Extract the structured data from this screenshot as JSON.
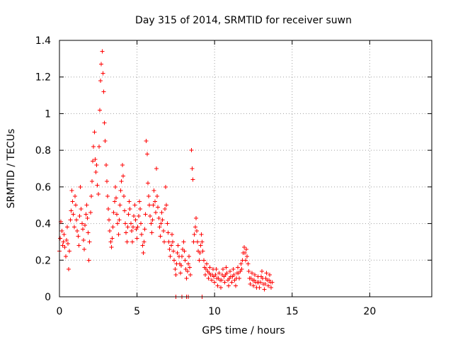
{
  "chart_data": {
    "type": "scatter",
    "title": "Day 315 of 2014, SRMTID for receiver suwn",
    "xlabel": "GPS time / hours",
    "ylabel": "SRMTID / TECUs",
    "xlim": [
      0,
      24
    ],
    "ylim": [
      0,
      1.4
    ],
    "x_ticks": [
      0,
      5,
      10,
      15,
      20
    ],
    "x_tick_labels": [
      "0",
      "5",
      "10",
      "15",
      "20"
    ],
    "y_ticks": [
      0,
      0.2,
      0.4,
      0.6,
      0.8,
      1.0,
      1.2,
      1.4
    ],
    "y_tick_labels": [
      "0",
      "0.2",
      "0.4",
      "0.6",
      "0.8",
      "1",
      "1.2",
      "1.4"
    ],
    "grid": true,
    "marker": "+",
    "color": "#ff0000",
    "series": [
      {
        "name": "SRMTID",
        "points": [
          [
            0.0,
            0.25
          ],
          [
            0.05,
            0.32
          ],
          [
            0.1,
            0.41
          ],
          [
            0.15,
            0.36
          ],
          [
            0.2,
            0.28
          ],
          [
            0.25,
            0.3
          ],
          [
            0.3,
            0.34
          ],
          [
            0.35,
            0.27
          ],
          [
            0.4,
            0.22
          ],
          [
            0.45,
            0.31
          ],
          [
            0.5,
            0.38
          ],
          [
            0.55,
            0.29
          ],
          [
            0.6,
            0.15
          ],
          [
            0.65,
            0.25
          ],
          [
            0.7,
            0.42
          ],
          [
            0.75,
            0.47
          ],
          [
            0.8,
            0.58
          ],
          [
            0.85,
            0.52
          ],
          [
            0.9,
            0.45
          ],
          [
            0.95,
            0.38
          ],
          [
            1.0,
            0.55
          ],
          [
            1.05,
            0.5
          ],
          [
            1.1,
            0.42
          ],
          [
            1.15,
            0.36
          ],
          [
            1.2,
            0.33
          ],
          [
            1.25,
            0.28
          ],
          [
            1.3,
            0.44
          ],
          [
            1.35,
            0.6
          ],
          [
            1.4,
            0.48
          ],
          [
            1.45,
            0.4
          ],
          [
            1.5,
            0.37
          ],
          [
            1.55,
            0.31
          ],
          [
            1.6,
            0.26
          ],
          [
            1.65,
            0.39
          ],
          [
            1.7,
            0.45
          ],
          [
            1.75,
            0.5
          ],
          [
            1.8,
            0.43
          ],
          [
            1.85,
            0.35
          ],
          [
            1.9,
            0.2
          ],
          [
            1.95,
            0.3
          ],
          [
            2.0,
            0.46
          ],
          [
            2.05,
            0.55
          ],
          [
            2.1,
            0.63
          ],
          [
            2.15,
            0.74
          ],
          [
            2.2,
            0.82
          ],
          [
            2.25,
            0.9
          ],
          [
            2.3,
            0.75
          ],
          [
            2.35,
            0.68
          ],
          [
            2.4,
            0.72
          ],
          [
            2.45,
            0.61
          ],
          [
            2.5,
            0.56
          ],
          [
            2.55,
            0.82
          ],
          [
            2.6,
            1.02
          ],
          [
            2.65,
            1.18
          ],
          [
            2.7,
            1.27
          ],
          [
            2.75,
            1.34
          ],
          [
            2.8,
            1.22
          ],
          [
            2.85,
            1.12
          ],
          [
            2.9,
            0.95
          ],
          [
            2.95,
            0.85
          ],
          [
            3.0,
            0.72
          ],
          [
            3.05,
            0.63
          ],
          [
            3.1,
            0.55
          ],
          [
            3.15,
            0.48
          ],
          [
            3.2,
            0.42
          ],
          [
            3.25,
            0.36
          ],
          [
            3.3,
            0.3
          ],
          [
            3.35,
            0.27
          ],
          [
            3.4,
            0.32
          ],
          [
            3.45,
            0.38
          ],
          [
            3.5,
            0.46
          ],
          [
            3.55,
            0.52
          ],
          [
            3.6,
            0.6
          ],
          [
            3.65,
            0.54
          ],
          [
            3.7,
            0.45
          ],
          [
            3.75,
            0.4
          ],
          [
            3.8,
            0.34
          ],
          [
            3.85,
            0.42
          ],
          [
            3.9,
            0.5
          ],
          [
            3.95,
            0.58
          ],
          [
            4.0,
            0.63
          ],
          [
            4.05,
            0.72
          ],
          [
            4.1,
            0.66
          ],
          [
            4.15,
            0.55
          ],
          [
            4.2,
            0.47
          ],
          [
            4.25,
            0.4
          ],
          [
            4.3,
            0.35
          ],
          [
            4.35,
            0.3
          ],
          [
            4.4,
            0.38
          ],
          [
            4.45,
            0.45
          ],
          [
            4.5,
            0.52
          ],
          [
            4.55,
            0.48
          ],
          [
            4.6,
            0.4
          ],
          [
            4.65,
            0.36
          ],
          [
            4.7,
            0.3
          ],
          [
            4.75,
            0.38
          ],
          [
            4.8,
            0.44
          ],
          [
            4.85,
            0.5
          ],
          [
            4.9,
            0.42
          ],
          [
            4.95,
            0.37
          ],
          [
            5.0,
            0.32
          ],
          [
            5.05,
            0.38
          ],
          [
            5.1,
            0.44
          ],
          [
            5.15,
            0.52
          ],
          [
            5.2,
            0.48
          ],
          [
            5.25,
            0.4
          ],
          [
            5.3,
            0.34
          ],
          [
            5.35,
            0.28
          ],
          [
            5.4,
            0.24
          ],
          [
            5.45,
            0.3
          ],
          [
            5.5,
            0.37
          ],
          [
            5.55,
            0.45
          ],
          [
            5.6,
            0.85
          ],
          [
            5.65,
            0.78
          ],
          [
            5.7,
            0.62
          ],
          [
            5.75,
            0.55
          ],
          [
            5.8,
            0.5
          ],
          [
            5.85,
            0.44
          ],
          [
            5.9,
            0.4
          ],
          [
            5.95,
            0.35
          ],
          [
            6.0,
            0.42
          ],
          [
            6.05,
            0.5
          ],
          [
            6.1,
            0.58
          ],
          [
            6.15,
            0.52
          ],
          [
            6.2,
            0.46
          ],
          [
            6.25,
            0.7
          ],
          [
            6.3,
            0.55
          ],
          [
            6.35,
            0.49
          ],
          [
            6.4,
            0.43
          ],
          [
            6.45,
            0.38
          ],
          [
            6.5,
            0.33
          ],
          [
            6.55,
            0.4
          ],
          [
            6.6,
            0.46
          ],
          [
            6.65,
            0.42
          ],
          [
            6.7,
            0.36
          ],
          [
            6.75,
            0.3
          ],
          [
            6.8,
            0.48
          ],
          [
            6.85,
            0.6
          ],
          [
            6.9,
            0.5
          ],
          [
            6.95,
            0.4
          ],
          [
            7.0,
            0.35
          ],
          [
            7.05,
            0.3
          ],
          [
            7.1,
            0.26
          ],
          [
            7.15,
            0.22
          ],
          [
            7.2,
            0.28
          ],
          [
            7.25,
            0.34
          ],
          [
            7.3,
            0.3
          ],
          [
            7.35,
            0.25
          ],
          [
            7.4,
            0.2
          ],
          [
            7.45,
            0.15
          ],
          [
            7.5,
            0.12
          ],
          [
            7.55,
            0.18
          ],
          [
            7.6,
            0.24
          ],
          [
            7.65,
            0.28
          ],
          [
            7.7,
            0.22
          ],
          [
            7.75,
            0.18
          ],
          [
            7.8,
            0.13
          ],
          [
            7.85,
            0.17
          ],
          [
            7.9,
            0.22
          ],
          [
            7.95,
            0.26
          ],
          [
            8.0,
            0.3
          ],
          [
            8.05,
            0.25
          ],
          [
            8.1,
            0.2
          ],
          [
            8.15,
            0.15
          ],
          [
            8.2,
            0.1
          ],
          [
            8.25,
            0.14
          ],
          [
            8.3,
            0.18
          ],
          [
            8.35,
            0.22
          ],
          [
            8.4,
            0.16
          ],
          [
            8.45,
            0.12
          ],
          [
            8.5,
            0.8
          ],
          [
            8.55,
            0.7
          ],
          [
            8.6,
            0.64
          ],
          [
            8.65,
            0.3
          ],
          [
            8.7,
            0.34
          ],
          [
            8.75,
            0.38
          ],
          [
            8.8,
            0.43
          ],
          [
            8.85,
            0.36
          ],
          [
            8.9,
            0.3
          ],
          [
            8.95,
            0.25
          ],
          [
            9.0,
            0.2
          ],
          [
            9.05,
            0.24
          ],
          [
            9.1,
            0.28
          ],
          [
            9.15,
            0.34
          ],
          [
            9.2,
            0.3
          ],
          [
            9.25,
            0.25
          ],
          [
            9.3,
            0.2
          ],
          [
            9.35,
            0.16
          ],
          [
            9.4,
            0.12
          ],
          [
            9.45,
            0.15
          ],
          [
            9.5,
            0.18
          ],
          [
            9.55,
            0.14
          ],
          [
            9.6,
            0.1
          ],
          [
            9.65,
            0.13
          ],
          [
            9.7,
            0.16
          ],
          [
            9.75,
            0.12
          ],
          [
            9.8,
            0.09
          ],
          [
            9.85,
            0.12
          ],
          [
            9.9,
            0.15
          ],
          [
            9.95,
            0.11
          ],
          [
            10.0,
            0.08
          ],
          [
            10.05,
            0.12
          ],
          [
            10.1,
            0.15
          ],
          [
            10.15,
            0.1
          ],
          [
            10.2,
            0.06
          ],
          [
            10.25,
            0.1
          ],
          [
            10.3,
            0.13
          ],
          [
            10.35,
            0.09
          ],
          [
            10.4,
            0.05
          ],
          [
            10.45,
            0.09
          ],
          [
            10.5,
            0.12
          ],
          [
            10.55,
            0.15
          ],
          [
            10.6,
            0.11
          ],
          [
            10.65,
            0.08
          ],
          [
            10.7,
            0.12
          ],
          [
            10.75,
            0.16
          ],
          [
            10.8,
            0.13
          ],
          [
            10.85,
            0.09
          ],
          [
            10.9,
            0.06
          ],
          [
            10.95,
            0.1
          ],
          [
            11.0,
            0.14
          ],
          [
            11.05,
            0.11
          ],
          [
            11.1,
            0.08
          ],
          [
            11.15,
            0.11
          ],
          [
            11.2,
            0.15
          ],
          [
            11.25,
            0.12
          ],
          [
            11.3,
            0.09
          ],
          [
            11.35,
            0.06
          ],
          [
            11.4,
            0.1
          ],
          [
            11.45,
            0.13
          ],
          [
            11.5,
            0.16
          ],
          [
            11.55,
            0.13
          ],
          [
            11.6,
            0.1
          ],
          [
            11.65,
            0.14
          ],
          [
            11.7,
            0.18
          ],
          [
            11.75,
            0.15
          ],
          [
            11.8,
            0.2
          ],
          [
            11.85,
            0.24
          ],
          [
            11.9,
            0.27
          ],
          [
            11.95,
            0.24
          ],
          [
            12.0,
            0.2
          ],
          [
            12.05,
            0.26
          ],
          [
            12.1,
            0.22
          ],
          [
            12.15,
            0.18
          ],
          [
            12.2,
            0.14
          ],
          [
            12.25,
            0.1
          ],
          [
            12.3,
            0.07
          ],
          [
            12.35,
            0.1
          ],
          [
            12.4,
            0.13
          ],
          [
            12.45,
            0.09
          ],
          [
            12.5,
            0.06
          ],
          [
            12.55,
            0.09
          ],
          [
            12.6,
            0.12
          ],
          [
            12.65,
            0.08
          ],
          [
            12.7,
            0.05
          ],
          [
            12.75,
            0.08
          ],
          [
            12.8,
            0.11
          ],
          [
            12.85,
            0.08
          ],
          [
            12.9,
            0.05
          ],
          [
            12.95,
            0.08
          ],
          [
            13.0,
            0.11
          ],
          [
            13.05,
            0.14
          ],
          [
            13.1,
            0.1
          ],
          [
            13.15,
            0.07
          ],
          [
            13.2,
            0.04
          ],
          [
            13.25,
            0.07
          ],
          [
            13.3,
            0.1
          ],
          [
            13.35,
            0.13
          ],
          [
            13.4,
            0.09
          ],
          [
            13.45,
            0.06
          ],
          [
            13.5,
            0.09
          ],
          [
            13.55,
            0.12
          ],
          [
            13.6,
            0.08
          ],
          [
            13.65,
            0.05
          ],
          [
            13.7,
            0.08
          ],
          [
            7.5,
            0.0
          ],
          [
            7.9,
            0.0
          ],
          [
            8.2,
            0.0
          ],
          [
            8.3,
            0.0
          ],
          [
            9.2,
            0.0
          ]
        ]
      }
    ]
  }
}
